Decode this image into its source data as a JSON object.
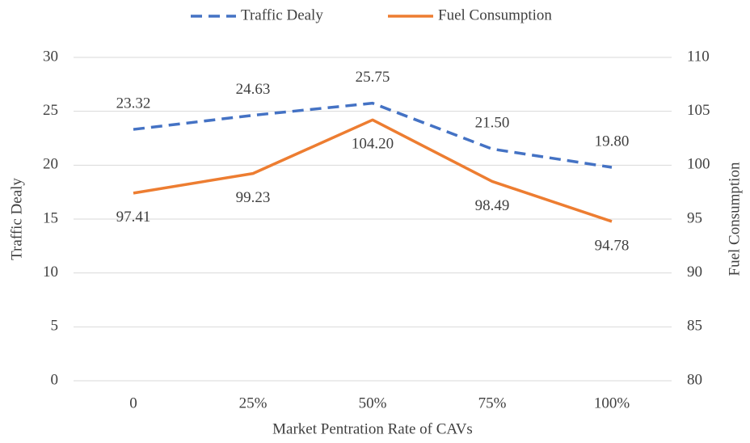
{
  "chart_data": {
    "type": "line",
    "categories": [
      "0",
      "25%",
      "50%",
      "75%",
      "100%"
    ],
    "series": [
      {
        "name": "Traffic Dealy",
        "color": "#4472c4",
        "dash": true,
        "values": [
          23.32,
          24.63,
          25.75,
          21.5,
          19.8
        ],
        "value_labels": [
          "23.32",
          "24.63",
          "25.75",
          "21.50",
          "19.80"
        ]
      },
      {
        "name": "Fuel Consumption",
        "color": "#ed7d31",
        "axis": "y2",
        "values": [
          97.41,
          99.23,
          104.2,
          98.49,
          94.78
        ],
        "value_labels": [
          "97.41",
          "99.23",
          "104.20",
          "98.49",
          "94.78"
        ]
      }
    ],
    "ylabel": "Traffic Dealy",
    "y2label": "Fuel Consumption",
    "xlabel": "Market Pentration Rate of CAVs",
    "ylim": [
      0,
      30
    ],
    "yticks": [
      0,
      5,
      10,
      15,
      20,
      25,
      30
    ],
    "y2lim": [
      80,
      110
    ],
    "y2ticks": [
      80,
      85,
      90,
      95,
      100,
      105,
      110
    ],
    "grid": true,
    "legend": "top"
  }
}
